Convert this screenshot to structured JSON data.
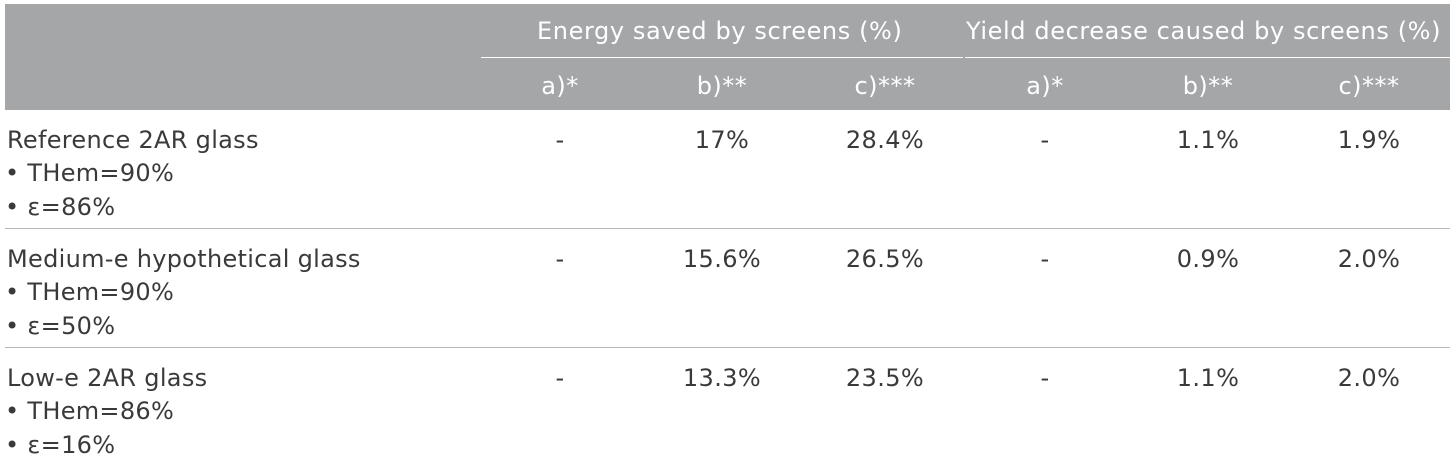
{
  "header": {
    "group_energy": "Energy saved by screens (%)",
    "group_yield": "Yield decrease caused by screens (%)",
    "sub_columns": [
      "a)*",
      "b)**",
      "c)***",
      "a)*",
      "b)**",
      "c)***"
    ]
  },
  "rows": [
    {
      "title": "Reference 2AR glass",
      "bullets": [
        "• THem=90%",
        "• ε=86%"
      ],
      "values": [
        "-",
        "17%",
        "28.4%",
        "-",
        "1.1%",
        "1.9%"
      ]
    },
    {
      "title": "Medium-e hypothetical glass",
      "bullets": [
        "• THem=90%",
        "• ε=50%"
      ],
      "values": [
        "-",
        "15.6%",
        "26.5%",
        "-",
        "0.9%",
        "2.0%"
      ]
    },
    {
      "title": "Low-e 2AR glass",
      "bullets": [
        "• THem=86%",
        "• ε=16%"
      ],
      "values": [
        "-",
        "13.3%",
        "23.5%",
        "-",
        "1.1%",
        "2.0%"
      ]
    }
  ],
  "colors": {
    "header_background": "#a5a6a8",
    "header_text": "#ffffff",
    "body_text": "#3a3a3a",
    "row_divider": "#b8b8b8"
  }
}
